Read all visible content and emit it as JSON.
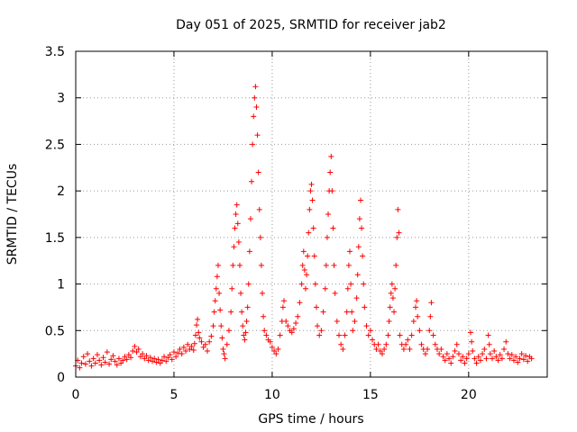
{
  "chart_data": {
    "type": "scatter",
    "title": "Day 051 of 2025, SRMTID for receiver jab2",
    "xlabel": "GPS time / hours",
    "ylabel": "SRMTID / TECUs",
    "xlim": [
      0,
      24
    ],
    "ylim": [
      0,
      3.5
    ],
    "x_ticks": [
      0,
      5,
      10,
      15,
      20
    ],
    "y_ticks": [
      0,
      0.5,
      1,
      1.5,
      2,
      2.5,
      3,
      3.5
    ],
    "x_tick_labels": [
      "0",
      "5",
      "10",
      "15",
      "20"
    ],
    "y_tick_labels": [
      "0",
      "0.5",
      "1",
      "1.5",
      "2",
      "2.5",
      "3",
      "3.5"
    ],
    "grid": true,
    "marker": "+",
    "color": "#ff0000",
    "series": [
      {
        "name": "jab2",
        "points": [
          [
            0.0,
            0.12
          ],
          [
            0.1,
            0.18
          ],
          [
            0.2,
            0.1
          ],
          [
            0.3,
            0.15
          ],
          [
            0.4,
            0.22
          ],
          [
            0.5,
            0.14
          ],
          [
            0.6,
            0.25
          ],
          [
            0.7,
            0.17
          ],
          [
            0.8,
            0.12
          ],
          [
            0.9,
            0.2
          ],
          [
            1.0,
            0.15
          ],
          [
            1.1,
            0.24
          ],
          [
            1.2,
            0.18
          ],
          [
            1.3,
            0.13
          ],
          [
            1.4,
            0.21
          ],
          [
            1.5,
            0.16
          ],
          [
            1.6,
            0.27
          ],
          [
            1.7,
            0.14
          ],
          [
            1.8,
            0.19
          ],
          [
            1.9,
            0.23
          ],
          [
            2.0,
            0.17
          ],
          [
            2.1,
            0.13
          ],
          [
            2.2,
            0.2
          ],
          [
            2.3,
            0.15
          ],
          [
            2.4,
            0.18
          ],
          [
            2.5,
            0.22
          ],
          [
            2.6,
            0.19
          ],
          [
            2.7,
            0.24
          ],
          [
            2.8,
            0.21
          ],
          [
            2.9,
            0.28
          ],
          [
            3.0,
            0.33
          ],
          [
            3.1,
            0.27
          ],
          [
            3.2,
            0.3
          ],
          [
            3.3,
            0.22
          ],
          [
            3.4,
            0.25
          ],
          [
            3.5,
            0.2
          ],
          [
            3.6,
            0.23
          ],
          [
            3.7,
            0.18
          ],
          [
            3.8,
            0.21
          ],
          [
            3.9,
            0.17
          ],
          [
            4.0,
            0.2
          ],
          [
            4.1,
            0.16
          ],
          [
            4.2,
            0.19
          ],
          [
            4.3,
            0.15
          ],
          [
            4.4,
            0.18
          ],
          [
            4.5,
            0.22
          ],
          [
            4.6,
            0.17
          ],
          [
            4.7,
            0.21
          ],
          [
            4.8,
            0.24
          ],
          [
            4.9,
            0.19
          ],
          [
            5.0,
            0.27
          ],
          [
            5.1,
            0.22
          ],
          [
            5.2,
            0.26
          ],
          [
            5.3,
            0.3
          ],
          [
            5.4,
            0.25
          ],
          [
            5.5,
            0.32
          ],
          [
            5.6,
            0.28
          ],
          [
            5.7,
            0.35
          ],
          [
            5.8,
            0.3
          ],
          [
            5.9,
            0.33
          ],
          [
            6.0,
            0.29
          ],
          [
            6.05,
            0.36
          ],
          [
            6.1,
            0.45
          ],
          [
            6.15,
            0.56
          ],
          [
            6.2,
            0.62
          ],
          [
            6.25,
            0.48
          ],
          [
            6.3,
            0.42
          ],
          [
            6.4,
            0.38
          ],
          [
            6.5,
            0.32
          ],
          [
            6.6,
            0.35
          ],
          [
            6.7,
            0.28
          ],
          [
            6.8,
            0.38
          ],
          [
            6.9,
            0.44
          ],
          [
            7.0,
            0.55
          ],
          [
            7.05,
            0.7
          ],
          [
            7.1,
            0.82
          ],
          [
            7.15,
            0.95
          ],
          [
            7.2,
            1.08
          ],
          [
            7.25,
            1.2
          ],
          [
            7.3,
            0.9
          ],
          [
            7.35,
            0.72
          ],
          [
            7.4,
            0.55
          ],
          [
            7.45,
            0.42
          ],
          [
            7.5,
            0.3
          ],
          [
            7.55,
            0.25
          ],
          [
            7.6,
            0.2
          ],
          [
            7.7,
            0.35
          ],
          [
            7.8,
            0.5
          ],
          [
            7.9,
            0.7
          ],
          [
            7.95,
            0.95
          ],
          [
            8.0,
            1.2
          ],
          [
            8.05,
            1.4
          ],
          [
            8.1,
            1.6
          ],
          [
            8.15,
            1.75
          ],
          [
            8.2,
            1.85
          ],
          [
            8.25,
            1.65
          ],
          [
            8.3,
            1.45
          ],
          [
            8.35,
            1.2
          ],
          [
            8.4,
            0.9
          ],
          [
            8.45,
            0.7
          ],
          [
            8.5,
            0.55
          ],
          [
            8.55,
            0.45
          ],
          [
            8.6,
            0.4
          ],
          [
            8.65,
            0.48
          ],
          [
            8.7,
            0.6
          ],
          [
            8.75,
            0.75
          ],
          [
            8.8,
            1.0
          ],
          [
            8.85,
            1.35
          ],
          [
            8.9,
            1.7
          ],
          [
            8.95,
            2.1
          ],
          [
            9.0,
            2.5
          ],
          [
            9.05,
            2.8
          ],
          [
            9.1,
            3.0
          ],
          [
            9.15,
            3.12
          ],
          [
            9.2,
            2.9
          ],
          [
            9.25,
            2.6
          ],
          [
            9.3,
            2.2
          ],
          [
            9.35,
            1.8
          ],
          [
            9.4,
            1.5
          ],
          [
            9.45,
            1.2
          ],
          [
            9.5,
            0.9
          ],
          [
            9.55,
            0.65
          ],
          [
            9.6,
            0.5
          ],
          [
            9.7,
            0.45
          ],
          [
            9.8,
            0.4
          ],
          [
            9.9,
            0.38
          ],
          [
            10.0,
            0.32
          ],
          [
            10.1,
            0.28
          ],
          [
            10.2,
            0.25
          ],
          [
            10.3,
            0.3
          ],
          [
            10.4,
            0.45
          ],
          [
            10.5,
            0.6
          ],
          [
            10.55,
            0.75
          ],
          [
            10.6,
            0.82
          ],
          [
            10.7,
            0.6
          ],
          [
            10.8,
            0.55
          ],
          [
            10.9,
            0.5
          ],
          [
            11.0,
            0.48
          ],
          [
            11.1,
            0.52
          ],
          [
            11.2,
            0.58
          ],
          [
            11.3,
            0.65
          ],
          [
            11.4,
            0.8
          ],
          [
            11.5,
            1.0
          ],
          [
            11.55,
            1.2
          ],
          [
            11.6,
            1.35
          ],
          [
            11.65,
            1.15
          ],
          [
            11.7,
            0.95
          ],
          [
            11.75,
            1.1
          ],
          [
            11.8,
            1.3
          ],
          [
            11.85,
            1.55
          ],
          [
            11.9,
            1.8
          ],
          [
            11.95,
            2.0
          ],
          [
            12.0,
            2.07
          ],
          [
            12.05,
            1.9
          ],
          [
            12.1,
            1.6
          ],
          [
            12.15,
            1.3
          ],
          [
            12.2,
            1.0
          ],
          [
            12.25,
            0.75
          ],
          [
            12.3,
            0.55
          ],
          [
            12.4,
            0.45
          ],
          [
            12.5,
            0.5
          ],
          [
            12.6,
            0.7
          ],
          [
            12.7,
            0.95
          ],
          [
            12.75,
            1.2
          ],
          [
            12.8,
            1.5
          ],
          [
            12.85,
            1.75
          ],
          [
            12.9,
            2.0
          ],
          [
            12.95,
            2.2
          ],
          [
            13.0,
            2.37
          ],
          [
            13.05,
            2.0
          ],
          [
            13.1,
            1.6
          ],
          [
            13.15,
            1.2
          ],
          [
            13.2,
            0.9
          ],
          [
            13.3,
            0.6
          ],
          [
            13.4,
            0.45
          ],
          [
            13.5,
            0.35
          ],
          [
            13.6,
            0.3
          ],
          [
            13.7,
            0.45
          ],
          [
            13.8,
            0.7
          ],
          [
            13.85,
            0.95
          ],
          [
            13.9,
            1.2
          ],
          [
            13.95,
            1.35
          ],
          [
            14.0,
            1.0
          ],
          [
            14.05,
            0.7
          ],
          [
            14.1,
            0.5
          ],
          [
            14.2,
            0.6
          ],
          [
            14.3,
            0.85
          ],
          [
            14.35,
            1.1
          ],
          [
            14.4,
            1.4
          ],
          [
            14.45,
            1.7
          ],
          [
            14.5,
            1.9
          ],
          [
            14.55,
            1.6
          ],
          [
            14.6,
            1.3
          ],
          [
            14.65,
            1.0
          ],
          [
            14.7,
            0.75
          ],
          [
            14.8,
            0.55
          ],
          [
            14.9,
            0.45
          ],
          [
            15.0,
            0.5
          ],
          [
            15.1,
            0.4
          ],
          [
            15.2,
            0.35
          ],
          [
            15.3,
            0.3
          ],
          [
            15.4,
            0.35
          ],
          [
            15.5,
            0.28
          ],
          [
            15.6,
            0.25
          ],
          [
            15.7,
            0.3
          ],
          [
            15.8,
            0.35
          ],
          [
            15.9,
            0.45
          ],
          [
            15.95,
            0.6
          ],
          [
            16.0,
            0.75
          ],
          [
            16.05,
            0.9
          ],
          [
            16.1,
            1.0
          ],
          [
            16.15,
            0.85
          ],
          [
            16.2,
            0.7
          ],
          [
            16.25,
            0.95
          ],
          [
            16.3,
            1.2
          ],
          [
            16.35,
            1.5
          ],
          [
            16.4,
            1.8
          ],
          [
            16.45,
            1.55
          ],
          [
            16.5,
            0.45
          ],
          [
            16.6,
            0.35
          ],
          [
            16.7,
            0.3
          ],
          [
            16.8,
            0.35
          ],
          [
            16.9,
            0.4
          ],
          [
            17.0,
            0.3
          ],
          [
            17.1,
            0.45
          ],
          [
            17.2,
            0.6
          ],
          [
            17.3,
            0.75
          ],
          [
            17.35,
            0.82
          ],
          [
            17.4,
            0.65
          ],
          [
            17.5,
            0.5
          ],
          [
            17.6,
            0.35
          ],
          [
            17.7,
            0.3
          ],
          [
            17.8,
            0.25
          ],
          [
            17.9,
            0.3
          ],
          [
            18.0,
            0.5
          ],
          [
            18.05,
            0.65
          ],
          [
            18.1,
            0.8
          ],
          [
            18.2,
            0.45
          ],
          [
            18.3,
            0.35
          ],
          [
            18.4,
            0.3
          ],
          [
            18.5,
            0.25
          ],
          [
            18.6,
            0.3
          ],
          [
            18.7,
            0.22
          ],
          [
            18.8,
            0.18
          ],
          [
            18.9,
            0.25
          ],
          [
            19.0,
            0.2
          ],
          [
            19.1,
            0.15
          ],
          [
            19.2,
            0.22
          ],
          [
            19.3,
            0.28
          ],
          [
            19.4,
            0.35
          ],
          [
            19.5,
            0.25
          ],
          [
            19.6,
            0.18
          ],
          [
            19.7,
            0.22
          ],
          [
            19.8,
            0.15
          ],
          [
            19.9,
            0.2
          ],
          [
            20.0,
            0.25
          ],
          [
            20.1,
            0.48
          ],
          [
            20.15,
            0.38
          ],
          [
            20.2,
            0.28
          ],
          [
            20.3,
            0.2
          ],
          [
            20.4,
            0.15
          ],
          [
            20.5,
            0.22
          ],
          [
            20.6,
            0.18
          ],
          [
            20.7,
            0.25
          ],
          [
            20.8,
            0.3
          ],
          [
            20.9,
            0.2
          ],
          [
            21.0,
            0.45
          ],
          [
            21.05,
            0.35
          ],
          [
            21.1,
            0.25
          ],
          [
            21.2,
            0.2
          ],
          [
            21.3,
            0.28
          ],
          [
            21.4,
            0.22
          ],
          [
            21.5,
            0.18
          ],
          [
            21.6,
            0.24
          ],
          [
            21.7,
            0.2
          ],
          [
            21.8,
            0.3
          ],
          [
            21.9,
            0.38
          ],
          [
            22.0,
            0.25
          ],
          [
            22.1,
            0.2
          ],
          [
            22.2,
            0.24
          ],
          [
            22.3,
            0.18
          ],
          [
            22.4,
            0.22
          ],
          [
            22.5,
            0.16
          ],
          [
            22.6,
            0.2
          ],
          [
            22.7,
            0.25
          ],
          [
            22.8,
            0.19
          ],
          [
            22.9,
            0.23
          ],
          [
            23.0,
            0.17
          ],
          [
            23.1,
            0.22
          ],
          [
            23.2,
            0.2
          ]
        ]
      }
    ]
  }
}
